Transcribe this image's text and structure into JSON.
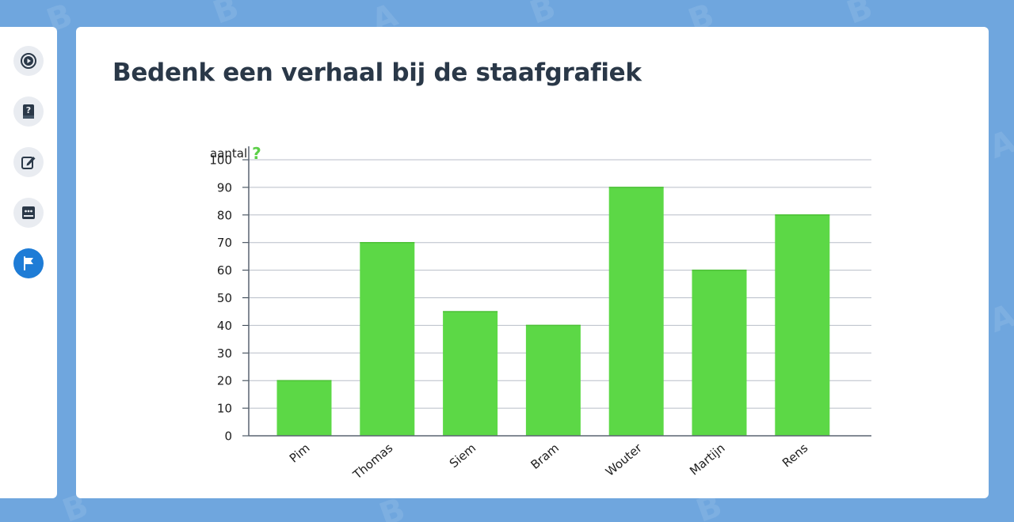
{
  "header": {
    "title": "Bedenk een verhaal bij de staafgrafiek"
  },
  "sidebar": {
    "items": [
      {
        "icon": "play-circle-icon"
      },
      {
        "icon": "help-book-icon"
      },
      {
        "icon": "edit-icon"
      },
      {
        "icon": "chat-book-icon"
      },
      {
        "icon": "flag-icon",
        "active": true
      }
    ]
  },
  "colors": {
    "accent": "#1e7cd6",
    "bar": "#5cd846",
    "background": "#6fa6de",
    "help": "#5ccf48"
  },
  "chart_data": {
    "type": "bar",
    "title": "",
    "xlabel": "",
    "ylabel": "aantal",
    "categories": [
      "Pim",
      "Thomas",
      "Siem",
      "Bram",
      "Wouter",
      "Martijn",
      "Rens"
    ],
    "values": [
      20,
      70,
      45,
      40,
      90,
      60,
      80
    ],
    "ylim": [
      0,
      100
    ],
    "yticks": [
      0,
      10,
      20,
      30,
      40,
      50,
      60,
      70,
      80,
      90,
      100
    ],
    "grid": true
  }
}
